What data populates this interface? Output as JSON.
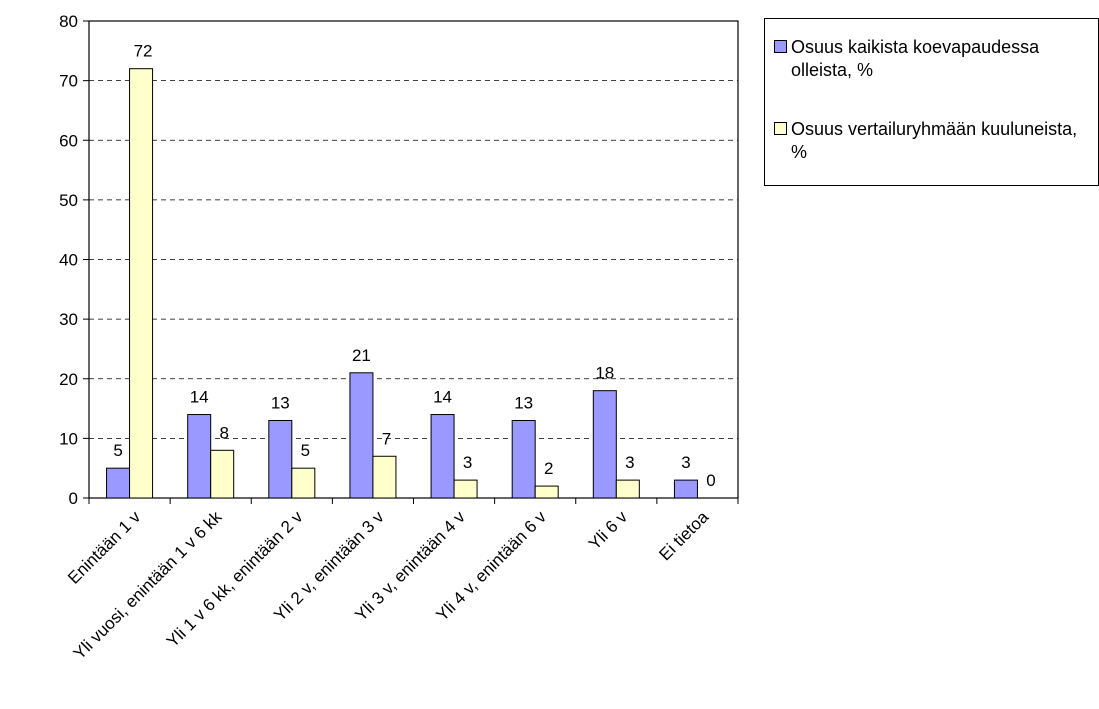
{
  "chart_data": {
    "type": "bar",
    "categories": [
      "Enintään 1 v",
      "Yli vuosi, enintään 1 v 6 kk",
      "Yli 1 v 6 kk, enintään 2 v",
      "Yli 2 v, enintään 3 v",
      "Yli 3 v, enintään 4 v",
      "Yli 4 v, enintään 6 v",
      "Yli 6 v",
      "Ei tietoa"
    ],
    "series": [
      {
        "name": "Osuus kaikista koevapaudessa olleista, %",
        "values": [
          5,
          14,
          13,
          21,
          14,
          13,
          18,
          3
        ],
        "color": "#9999ff"
      },
      {
        "name": "Osuus vertailuryhmään kuuluneista, %",
        "values": [
          72,
          8,
          5,
          7,
          3,
          2,
          3,
          0
        ],
        "color": "#ffffcc"
      }
    ],
    "y_ticks": [
      "0",
      "10",
      "20",
      "30",
      "40",
      "50",
      "60",
      "70",
      "80"
    ],
    "ylim": [
      0,
      80
    ],
    "grid": "horizontal dashed",
    "legend_position": "right"
  }
}
